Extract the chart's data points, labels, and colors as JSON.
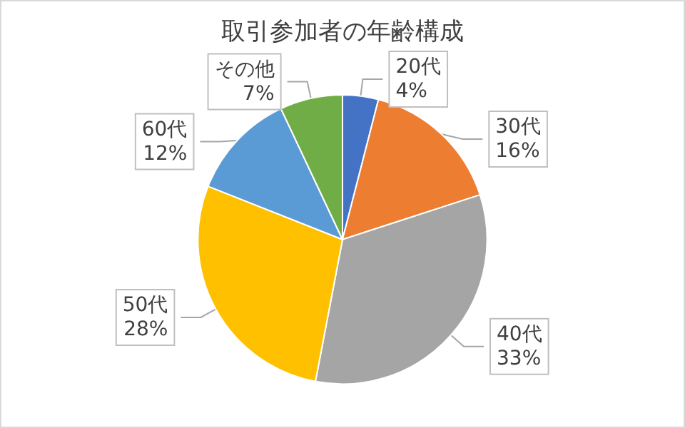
{
  "chart_data": {
    "type": "pie",
    "title": "取引参加者の年齢構成",
    "categories": [
      "20代",
      "30代",
      "40代",
      "50代",
      "60代",
      "その他"
    ],
    "values": [
      4,
      16,
      33,
      28,
      12,
      7
    ],
    "value_labels": [
      "4%",
      "16%",
      "33%",
      "28%",
      "12%",
      "7%"
    ],
    "colors": [
      "#4472c4",
      "#ed7d31",
      "#a5a5a5",
      "#ffc000",
      "#5b9bd5",
      "#70ad47"
    ],
    "legend": false
  }
}
